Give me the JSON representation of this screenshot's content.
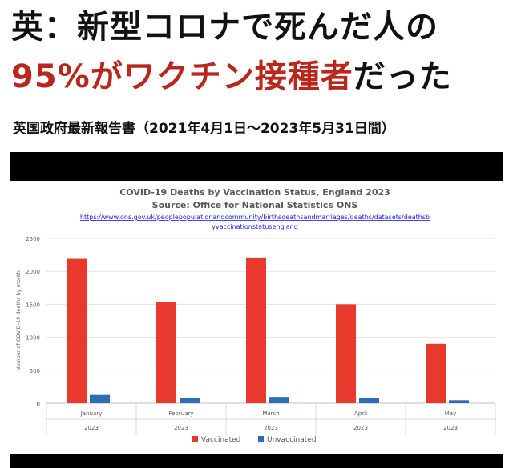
{
  "headline": {
    "line1": "英：新型コロナで死んだ人の",
    "line2_red": "95%がワクチン接種者",
    "line2_black": "だった"
  },
  "subtitle": "英国政府最新報告書（2021年4月1日～2023年5月31日間）",
  "colors": {
    "headline_red": "#b8261e",
    "vaccinated": "#e8392c",
    "unvaccinated": "#2e6cb5",
    "link": "#1a1aee"
  },
  "chart_data": {
    "type": "bar",
    "title": "COVID-19 Deaths by Vaccination Status, England 2023",
    "source": "Source: Office for National Statistics ONS",
    "url_line1": "https://www.ons.gov.uk/peoplepopulationandcommunity/birthsdeathsandmarriages/deaths/datasets/deathsb",
    "url_line2": "yvaccinationstatusengland",
    "ylabel": "Number of COVID-19 deaths by month",
    "ylim": [
      0,
      2500
    ],
    "yticks": [
      "0",
      "500",
      "1000",
      "1500",
      "2000",
      "2500"
    ],
    "categories": [
      "January",
      "February",
      "March",
      "April",
      "May"
    ],
    "category_year": "2023",
    "series": [
      {
        "name": "Vaccinated",
        "values": [
          2190,
          1530,
          2210,
          1500,
          900
        ]
      },
      {
        "name": "Unvaccinated",
        "values": [
          125,
          75,
          95,
          85,
          45
        ]
      }
    ],
    "legend_position": "bottom",
    "grid": true
  }
}
